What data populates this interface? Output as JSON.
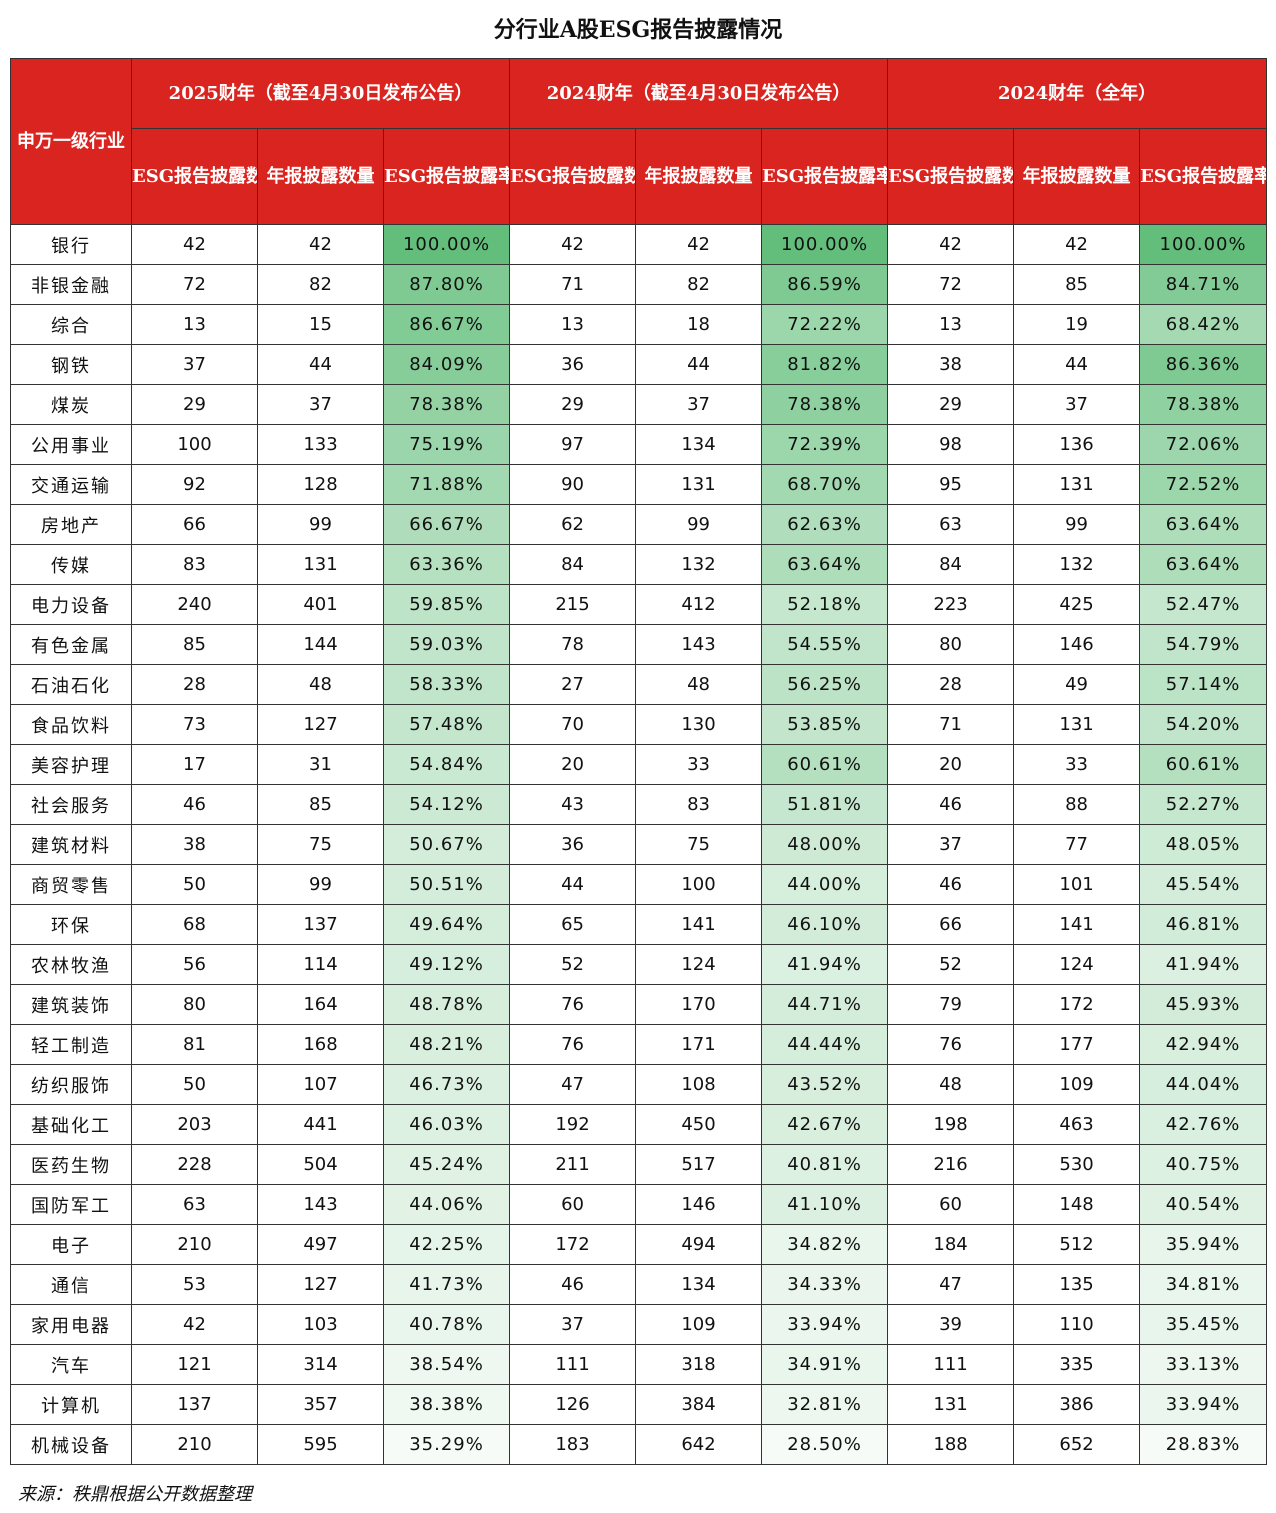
{
  "title": "分行业A股ESG报告披露情况",
  "header": {
    "industry": "申万一级行业",
    "groups": [
      "2025财年（截至4月30日发布公告）",
      "2024财年（截至4月30日发布公告）",
      "2024财年（全年）"
    ],
    "subs": [
      "ESG报告披露数量",
      "年报披露数量",
      "ESG报告披露率"
    ]
  },
  "rows": [
    [
      "银行",
      "42",
      "42",
      "100.00%",
      "42",
      "42",
      "100.00%",
      "42",
      "42",
      "100.00%"
    ],
    [
      "非银金融",
      "72",
      "82",
      "87.80%",
      "71",
      "82",
      "86.59%",
      "72",
      "85",
      "84.71%"
    ],
    [
      "综合",
      "13",
      "15",
      "86.67%",
      "13",
      "18",
      "72.22%",
      "13",
      "19",
      "68.42%"
    ],
    [
      "钢铁",
      "37",
      "44",
      "84.09%",
      "36",
      "44",
      "81.82%",
      "38",
      "44",
      "86.36%"
    ],
    [
      "煤炭",
      "29",
      "37",
      "78.38%",
      "29",
      "37",
      "78.38%",
      "29",
      "37",
      "78.38%"
    ],
    [
      "公用事业",
      "100",
      "133",
      "75.19%",
      "97",
      "134",
      "72.39%",
      "98",
      "136",
      "72.06%"
    ],
    [
      "交通运输",
      "92",
      "128",
      "71.88%",
      "90",
      "131",
      "68.70%",
      "95",
      "131",
      "72.52%"
    ],
    [
      "房地产",
      "66",
      "99",
      "66.67%",
      "62",
      "99",
      "62.63%",
      "63",
      "99",
      "63.64%"
    ],
    [
      "传媒",
      "83",
      "131",
      "63.36%",
      "84",
      "132",
      "63.64%",
      "84",
      "132",
      "63.64%"
    ],
    [
      "电力设备",
      "240",
      "401",
      "59.85%",
      "215",
      "412",
      "52.18%",
      "223",
      "425",
      "52.47%"
    ],
    [
      "有色金属",
      "85",
      "144",
      "59.03%",
      "78",
      "143",
      "54.55%",
      "80",
      "146",
      "54.79%"
    ],
    [
      "石油石化",
      "28",
      "48",
      "58.33%",
      "27",
      "48",
      "56.25%",
      "28",
      "49",
      "57.14%"
    ],
    [
      "食品饮料",
      "73",
      "127",
      "57.48%",
      "70",
      "130",
      "53.85%",
      "71",
      "131",
      "54.20%"
    ],
    [
      "美容护理",
      "17",
      "31",
      "54.84%",
      "20",
      "33",
      "60.61%",
      "20",
      "33",
      "60.61%"
    ],
    [
      "社会服务",
      "46",
      "85",
      "54.12%",
      "43",
      "83",
      "51.81%",
      "46",
      "88",
      "52.27%"
    ],
    [
      "建筑材料",
      "38",
      "75",
      "50.67%",
      "36",
      "75",
      "48.00%",
      "37",
      "77",
      "48.05%"
    ],
    [
      "商贸零售",
      "50",
      "99",
      "50.51%",
      "44",
      "100",
      "44.00%",
      "46",
      "101",
      "45.54%"
    ],
    [
      "环保",
      "68",
      "137",
      "49.64%",
      "65",
      "141",
      "46.10%",
      "66",
      "141",
      "46.81%"
    ],
    [
      "农林牧渔",
      "56",
      "114",
      "49.12%",
      "52",
      "124",
      "41.94%",
      "52",
      "124",
      "41.94%"
    ],
    [
      "建筑装饰",
      "80",
      "164",
      "48.78%",
      "76",
      "170",
      "44.71%",
      "79",
      "172",
      "45.93%"
    ],
    [
      "轻工制造",
      "81",
      "168",
      "48.21%",
      "76",
      "171",
      "44.44%",
      "76",
      "177",
      "42.94%"
    ],
    [
      "纺织服饰",
      "50",
      "107",
      "46.73%",
      "47",
      "108",
      "43.52%",
      "48",
      "109",
      "44.04%"
    ],
    [
      "基础化工",
      "203",
      "441",
      "46.03%",
      "192",
      "450",
      "42.67%",
      "198",
      "463",
      "42.76%"
    ],
    [
      "医药生物",
      "228",
      "504",
      "45.24%",
      "211",
      "517",
      "40.81%",
      "216",
      "530",
      "40.75%"
    ],
    [
      "国防军工",
      "63",
      "143",
      "44.06%",
      "60",
      "146",
      "41.10%",
      "60",
      "148",
      "40.54%"
    ],
    [
      "电子",
      "210",
      "497",
      "42.25%",
      "172",
      "494",
      "34.82%",
      "184",
      "512",
      "35.94%"
    ],
    [
      "通信",
      "53",
      "127",
      "41.73%",
      "46",
      "134",
      "34.33%",
      "47",
      "135",
      "34.81%"
    ],
    [
      "家用电器",
      "42",
      "103",
      "40.78%",
      "37",
      "109",
      "33.94%",
      "39",
      "110",
      "35.45%"
    ],
    [
      "汽车",
      "121",
      "314",
      "38.54%",
      "111",
      "318",
      "34.91%",
      "111",
      "335",
      "33.13%"
    ],
    [
      "计算机",
      "137",
      "357",
      "38.38%",
      "126",
      "384",
      "32.81%",
      "131",
      "386",
      "33.94%"
    ],
    [
      "机械设备",
      "210",
      "595",
      "35.29%",
      "183",
      "642",
      "28.50%",
      "188",
      "652",
      "28.83%"
    ]
  ],
  "colors": {
    "header_bg": "#d9241f",
    "scale_high": "#63be7b",
    "scale_low": "#ffffff"
  },
  "source": "来源：秩鼎根据公开数据整理"
}
